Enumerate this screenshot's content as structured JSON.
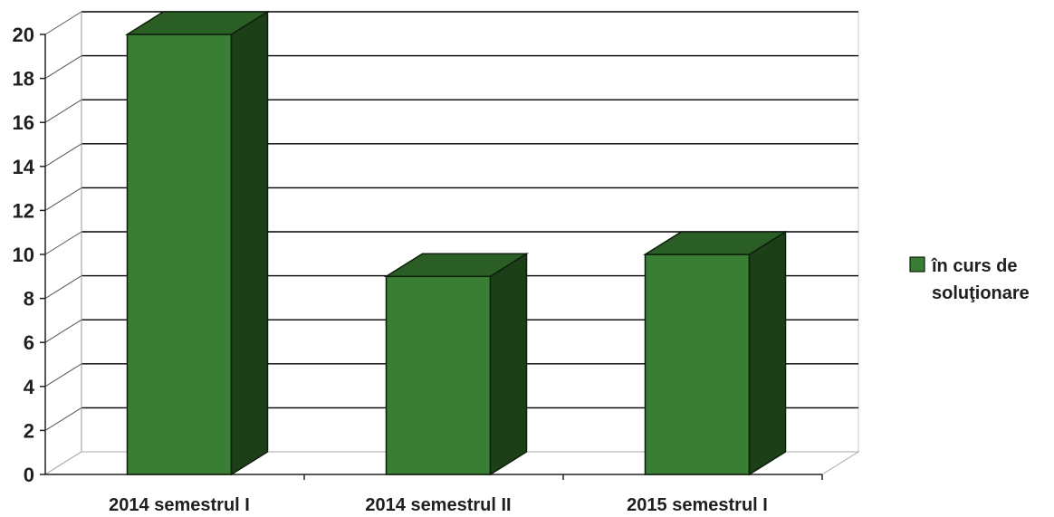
{
  "chart_data": {
    "type": "bar",
    "categories": [
      "2014 semestrul I",
      "2014 semestrul II",
      "2015 semestrul I"
    ],
    "series": [
      {
        "name": "în curs de soluţionare",
        "values": [
          20,
          9,
          10
        ]
      }
    ],
    "ylim": [
      0,
      20
    ],
    "yticks": [
      "0",
      "2",
      "4",
      "6",
      "8",
      "10",
      "12",
      "14",
      "16",
      "18",
      "20"
    ],
    "grid": true,
    "legend": "right",
    "legend_lines": [
      "în curs de",
      "soluţionare"
    ],
    "colors": {
      "front": "#3a7d34",
      "top": "#2b5e25",
      "side": "#1c3f18",
      "outline": "#0d1f0b"
    }
  }
}
